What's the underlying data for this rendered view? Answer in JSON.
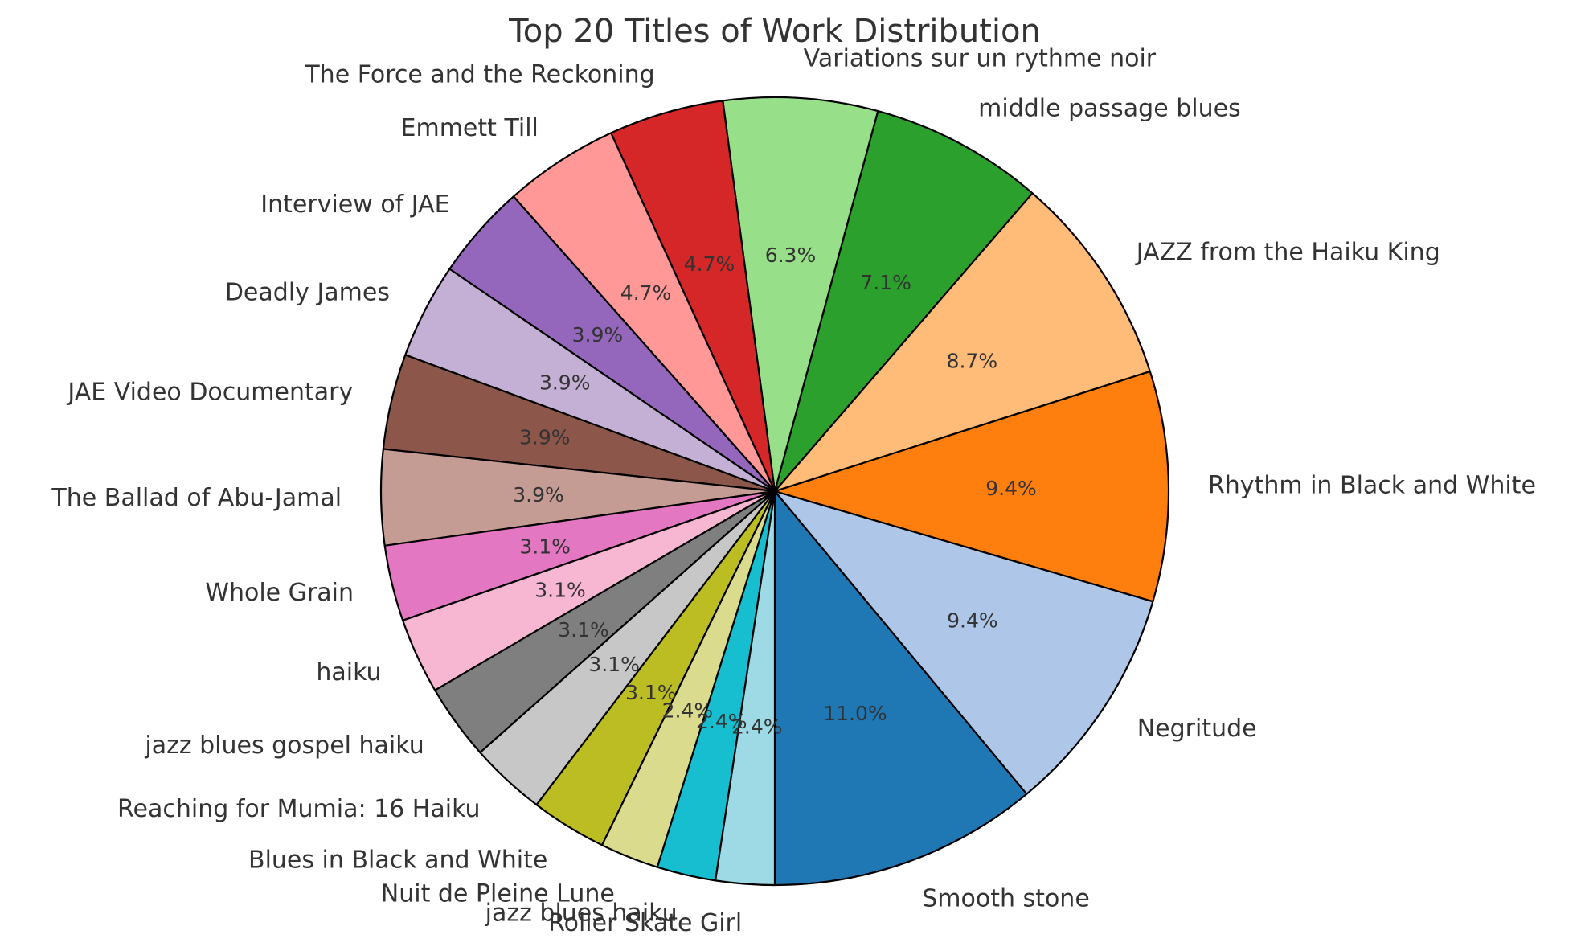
{
  "chart_data": {
    "type": "pie",
    "title": "Top 20 Titles of Work Distribution",
    "start_angle_deg": -90,
    "direction": "counterclockwise",
    "slices": [
      {
        "label": "Smooth stone",
        "value": 11.0,
        "pct_label": "11.0%",
        "color": "#1f77b4"
      },
      {
        "label": "Negritude",
        "value": 9.4,
        "pct_label": "9.4%",
        "color": "#aec7e8"
      },
      {
        "label": "Rhythm in Black and White",
        "value": 9.4,
        "pct_label": "9.4%",
        "color": "#ff7f0e"
      },
      {
        "label": "JAZZ from the Haiku King",
        "value": 8.7,
        "pct_label": "8.7%",
        "color": "#ffbb78"
      },
      {
        "label": "middle passage blues",
        "value": 7.1,
        "pct_label": "7.1%",
        "color": "#2ca02c"
      },
      {
        "label": "Variations sur un rythme noir",
        "value": 6.3,
        "pct_label": "6.3%",
        "color": "#98df8a"
      },
      {
        "label": "The Force and the Reckoning",
        "value": 4.7,
        "pct_label": "4.7%",
        "color": "#d62728"
      },
      {
        "label": "Emmett Till",
        "value": 4.7,
        "pct_label": "4.7%",
        "color": "#ff9896"
      },
      {
        "label": "Interview of JAE",
        "value": 3.9,
        "pct_label": "3.9%",
        "color": "#9467bd"
      },
      {
        "label": "Deadly James",
        "value": 3.9,
        "pct_label": "3.9%",
        "color": "#c5b0d5"
      },
      {
        "label": "JAE Video Documentary",
        "value": 3.9,
        "pct_label": "3.9%",
        "color": "#8c564b"
      },
      {
        "label": "The Ballad of Abu-Jamal",
        "value": 3.9,
        "pct_label": "3.9%",
        "color": "#c49c94"
      },
      {
        "label": "Whole Grain",
        "value": 3.1,
        "pct_label": "3.1%",
        "color": "#e377c2"
      },
      {
        "label": "haiku",
        "value": 3.1,
        "pct_label": "3.1%",
        "color": "#f7b6d2"
      },
      {
        "label": "jazz blues gospel haiku",
        "value": 3.1,
        "pct_label": "3.1%",
        "color": "#7f7f7f"
      },
      {
        "label": "Reaching for Mumia: 16 Haiku",
        "value": 3.1,
        "pct_label": "3.1%",
        "color": "#c7c7c7"
      },
      {
        "label": "Blues in Black and White",
        "value": 3.1,
        "pct_label": "3.1%",
        "color": "#bcbd22"
      },
      {
        "label": "Nuit de Pleine Lune",
        "value": 2.4,
        "pct_label": "2.4%",
        "color": "#dbdb8d"
      },
      {
        "label": "jazz blues haiku",
        "value": 2.4,
        "pct_label": "2.4%",
        "color": "#17becf"
      },
      {
        "label": "Roller Skate Girl",
        "value": 2.4,
        "pct_label": "2.4%",
        "color": "#9edae5"
      }
    ]
  }
}
